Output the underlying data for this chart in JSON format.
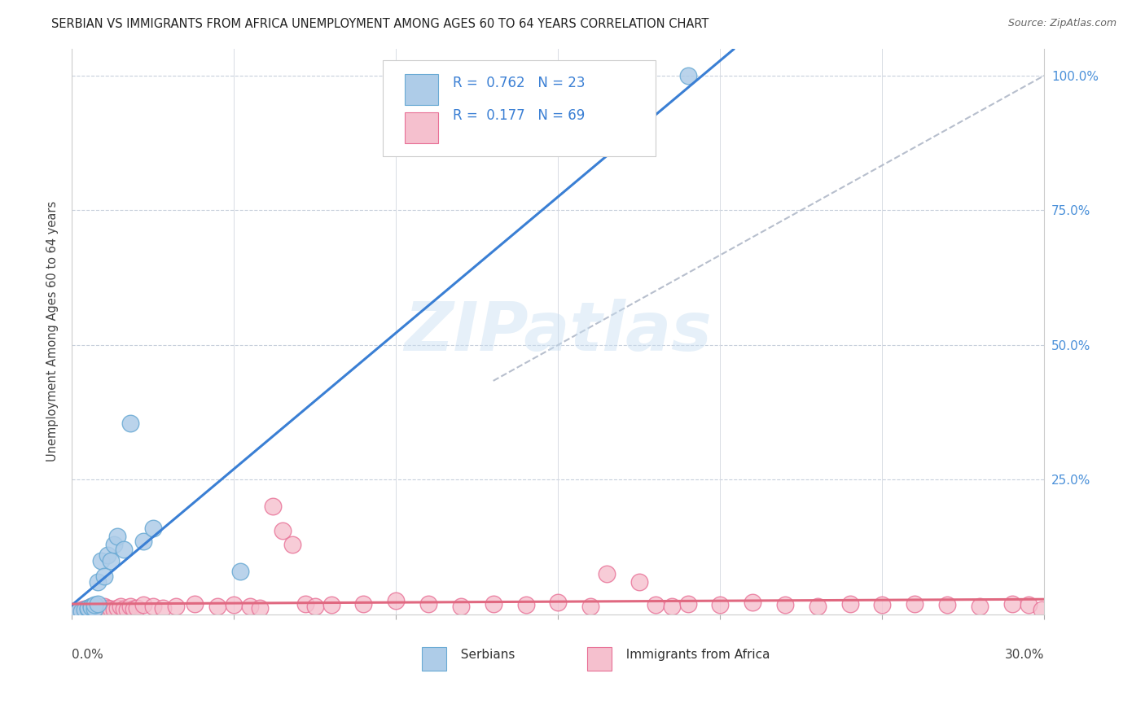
{
  "title": "SERBIAN VS IMMIGRANTS FROM AFRICA UNEMPLOYMENT AMONG AGES 60 TO 64 YEARS CORRELATION CHART",
  "source": "Source: ZipAtlas.com",
  "ylabel": "Unemployment Among Ages 60 to 64 years",
  "xlim": [
    0.0,
    0.3
  ],
  "ylim": [
    0.0,
    1.05
  ],
  "watermark": "ZIPatlas",
  "series1_color": "#aecce8",
  "series1_edge": "#6aaad4",
  "series2_color": "#f5c0ce",
  "series2_edge": "#e87096",
  "line1_color": "#3a7fd4",
  "line2_color": "#e06880",
  "diag_color": "#b0b8c8",
  "background_color": "#ffffff",
  "right_ytick_color": "#4a90d9",
  "title_fontsize": 10.5,
  "legend_fontsize": 12,
  "watermark_text": "ZIPatlas",
  "serbian_x": [
    0.002,
    0.003,
    0.004,
    0.005,
    0.005,
    0.006,
    0.006,
    0.007,
    0.007,
    0.008,
    0.008,
    0.009,
    0.01,
    0.011,
    0.012,
    0.013,
    0.014,
    0.016,
    0.018,
    0.022,
    0.025,
    0.19,
    0.052
  ],
  "serbian_y": [
    0.005,
    0.005,
    0.008,
    0.01,
    0.012,
    0.015,
    0.013,
    0.01,
    0.018,
    0.02,
    0.06,
    0.1,
    0.07,
    0.11,
    0.1,
    0.13,
    0.145,
    0.12,
    0.355,
    0.135,
    0.16,
    1.0,
    0.08
  ],
  "africa_x": [
    0.002,
    0.003,
    0.003,
    0.004,
    0.004,
    0.005,
    0.005,
    0.005,
    0.006,
    0.006,
    0.006,
    0.007,
    0.007,
    0.008,
    0.008,
    0.009,
    0.009,
    0.01,
    0.01,
    0.011,
    0.012,
    0.013,
    0.014,
    0.015,
    0.016,
    0.017,
    0.018,
    0.019,
    0.02,
    0.022,
    0.025,
    0.028,
    0.032,
    0.038,
    0.045,
    0.05,
    0.055,
    0.058,
    0.062,
    0.065,
    0.068,
    0.072,
    0.075,
    0.08,
    0.09,
    0.1,
    0.11,
    0.12,
    0.13,
    0.14,
    0.15,
    0.16,
    0.165,
    0.175,
    0.18,
    0.185,
    0.19,
    0.2,
    0.21,
    0.22,
    0.23,
    0.24,
    0.25,
    0.26,
    0.27,
    0.28,
    0.29,
    0.295,
    0.299
  ],
  "africa_y": [
    0.005,
    0.008,
    0.003,
    0.006,
    0.01,
    0.008,
    0.012,
    0.005,
    0.015,
    0.008,
    0.004,
    0.01,
    0.007,
    0.012,
    0.005,
    0.01,
    0.007,
    0.015,
    0.008,
    0.012,
    0.01,
    0.008,
    0.012,
    0.015,
    0.01,
    0.008,
    0.015,
    0.01,
    0.012,
    0.018,
    0.015,
    0.012,
    0.015,
    0.02,
    0.015,
    0.018,
    0.015,
    0.012,
    0.2,
    0.155,
    0.13,
    0.02,
    0.015,
    0.018,
    0.02,
    0.025,
    0.02,
    0.015,
    0.02,
    0.018,
    0.022,
    0.015,
    0.075,
    0.06,
    0.018,
    0.015,
    0.02,
    0.018,
    0.022,
    0.018,
    0.015,
    0.02,
    0.018,
    0.02,
    0.018,
    0.015,
    0.02,
    0.018,
    0.008
  ]
}
